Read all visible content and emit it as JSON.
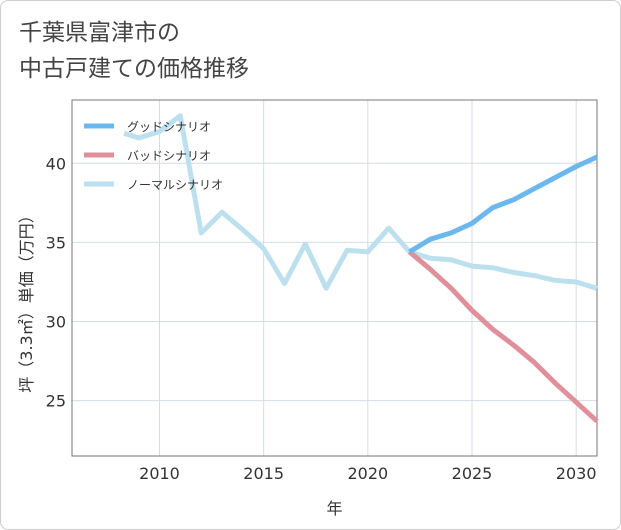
{
  "title_lines": [
    "千葉県富津市の",
    "中古戸建ての価格推移"
  ],
  "chart_data": {
    "type": "line",
    "title": "千葉県富津市の中古戸建ての価格推移",
    "xlabel": "年",
    "ylabel": "坪（3.3㎡）単価（万円）",
    "xlim": [
      2005.8,
      2031
    ],
    "ylim": [
      21.5,
      44
    ],
    "xticks": [
      2010,
      2015,
      2020,
      2025,
      2030
    ],
    "yticks": [
      25,
      30,
      35,
      40
    ],
    "legend_position": "top-left",
    "series": [
      {
        "name": "グッドシナリオ",
        "color": "#6cb8ec",
        "x": [
          2022,
          2023,
          2024,
          2025,
          2026,
          2027,
          2028,
          2029,
          2030,
          2031
        ],
        "y": [
          34.4,
          35.2,
          35.6,
          36.2,
          37.2,
          37.7,
          38.4,
          39.1,
          39.8,
          40.4
        ]
      },
      {
        "name": "バッドシナリオ",
        "color": "#e0909a",
        "x": [
          2022,
          2023,
          2024,
          2025,
          2026,
          2027,
          2028,
          2029,
          2030,
          2031
        ],
        "y": [
          34.4,
          33.3,
          32.1,
          30.7,
          29.5,
          28.5,
          27.4,
          26.1,
          24.9,
          23.7
        ]
      },
      {
        "name": "ノーマルシナリオ",
        "color": "#bde0ef",
        "x": [
          2008.3,
          2009,
          2010,
          2011,
          2012,
          2013,
          2014,
          2015,
          2016,
          2017,
          2018,
          2019,
          2020,
          2021,
          2022,
          2023,
          2024,
          2025,
          2026,
          2027,
          2028,
          2029,
          2030,
          2031
        ],
        "y": [
          41.9,
          41.6,
          42.0,
          43.0,
          35.6,
          36.9,
          35.8,
          34.6,
          32.4,
          34.9,
          32.1,
          34.5,
          34.4,
          35.9,
          34.4,
          34.0,
          33.9,
          33.5,
          33.4,
          33.1,
          32.9,
          32.6,
          32.5,
          32.1
        ]
      }
    ]
  }
}
